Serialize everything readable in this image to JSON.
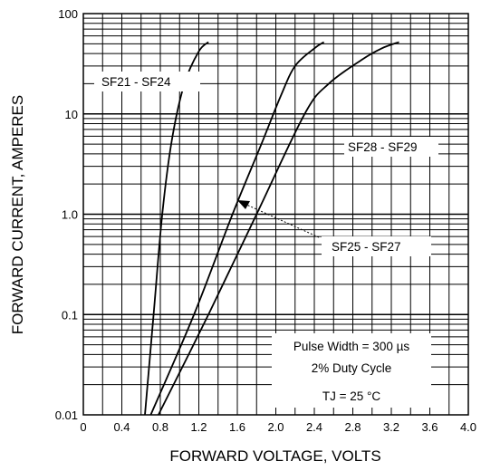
{
  "chart_data": {
    "type": "line",
    "xlabel": "FORWARD VOLTAGE, VOLTS",
    "ylabel": "FORWARD CURRENT, AMPERES",
    "xlim": [
      0,
      4.0
    ],
    "ylim": [
      0.01,
      100
    ],
    "y_scale": "log",
    "grid": true,
    "x_ticks": [
      "0",
      "0.4",
      "0.8",
      "1.2",
      "1.6",
      "2.0",
      "2.4",
      "2.8",
      "3.2",
      "3.6",
      "4.0"
    ],
    "y_ticks": [
      "100",
      "10",
      "1.0",
      "0.1",
      "0.01"
    ],
    "series": [
      {
        "name": "SF21 - SF24",
        "points": [
          [
            0.64,
            0.01
          ],
          [
            0.73,
            0.1
          ],
          [
            0.82,
            1.0
          ],
          [
            0.92,
            5.5
          ],
          [
            1.05,
            20
          ],
          [
            1.2,
            42
          ],
          [
            1.3,
            52
          ]
        ]
      },
      {
        "name": "SF25 - SF27",
        "points": [
          [
            0.7,
            0.01
          ],
          [
            1.15,
            0.1
          ],
          [
            1.55,
            1.0
          ],
          [
            1.85,
            5
          ],
          [
            2.05,
            15
          ],
          [
            2.2,
            30
          ],
          [
            2.4,
            45
          ],
          [
            2.5,
            52
          ]
        ]
      },
      {
        "name": "SF28 - SF29",
        "points": [
          [
            0.78,
            0.01
          ],
          [
            1.3,
            0.1
          ],
          [
            1.8,
            1.0
          ],
          [
            2.3,
            10
          ],
          [
            2.55,
            20
          ],
          [
            2.9,
            35
          ],
          [
            3.1,
            45
          ],
          [
            3.28,
            52
          ]
        ]
      }
    ],
    "annotations": {
      "pulse_width": "Pulse Width = 300 µs",
      "duty_cycle": "2% Duty Cycle",
      "tj": "TJ = 25 °C"
    }
  }
}
